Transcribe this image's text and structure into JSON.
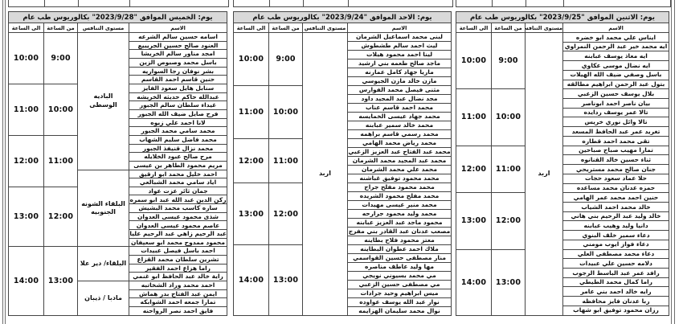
{
  "page": {
    "background": "#ffffff",
    "border_color": "#454545",
    "title_row_bg": "#d9d9d9"
  },
  "columns": {
    "name": "الاسم",
    "level": "مستوى التنافس",
    "from": "من الساعة",
    "to": "الى الساعة"
  },
  "tables": [
    {
      "title": "يوم: الخميس الموافق \"2023/9/28\" بكالوريوس طب عام",
      "blocks": [
        {
          "from": "9:00",
          "to": "10:00",
          "rows": 6
        },
        {
          "from": "10:00",
          "to": "11:00",
          "rows": 6
        },
        {
          "from": "11:00",
          "to": "12:00",
          "rows": 6
        },
        {
          "from": "12:00",
          "to": "13:00",
          "rows": 7
        },
        {
          "from": "13:00",
          "to": "14:00",
          "rows": 8
        }
      ],
      "levels": [
        {
          "label": "الباديه الوسطى",
          "rows": 16
        },
        {
          "label": "البلقاء الشونه الجنوبيه",
          "rows": 9
        },
        {
          "label": "البلقاء/ دير علا",
          "rows": 4
        },
        {
          "label": "مادبا / ذيبان",
          "rows": 4
        }
      ],
      "names": [
        "اسامه حسين سالم الشرعه",
        "العنود صالح حسين الجريبيع",
        "امجد مناور سالم الخريشا",
        "باسل محمد وصبوص الزين",
        "بشر نوفان رجا السواريه",
        "حنين قاسم احمد القاسم",
        "سنابل هايل سعود الفايز",
        "عبدالله حاكم حديثه الخريشه",
        "غيداء سلطان سالم الجبور",
        "فرح صايل ضيف الله الجبور",
        "لانا احمد علي زيوه",
        "محمد سامي محمد الجبور",
        "محمد فاضل سليم الشهاب",
        "محمد نزال قنيفذ الجبور",
        "مرح صالح عبود الخلايله",
        "مريم محمود الطاهر بن عيسى",
        "احمد خليل محمد ابو ارقيق",
        "اياد سامي محمد الشبالعي",
        "جمان ثائر عزت عواد",
        "ركن الدين عبد الله عبد ابو سمره",
        "ساره كاسب محمد البشيش",
        "شذى محمود عيسى العدوان",
        "عاصم محمود عيسى العدوان",
        "عبد الرحيم زاهي عبد الرحيم عليان",
        "محمود ممدوح محمد ابو سعيفان",
        "احمد باسل فيصل عبيدات",
        "تشرين سلطان محمد القزاع",
        "راما هزاع احمد الفقير",
        "راية خالد عبد الحافظ ابو غنمي",
        "احمد محمد وراد الشخاتبه",
        "ايمن عبد الفتاح بدر هماش",
        "تمارا جمعه احمد الشوابكه",
        "فايق احمد نصر الرواحنه"
      ]
    },
    {
      "title": "يوم: الاحد الموافق \"2023/9/24\" بكالوريوس طب عام",
      "blocks": [
        {
          "from": "9:00",
          "to": "10:00",
          "rows": 6
        },
        {
          "from": "10:00",
          "to": "11:00",
          "rows": 6
        },
        {
          "from": "11:00",
          "to": "12:00",
          "rows": 5
        },
        {
          "from": "12:00",
          "to": "13:00",
          "rows": 7
        },
        {
          "from": "13:00",
          "to": "14:00",
          "rows": 8
        }
      ],
      "levels": [
        {
          "label": "اربد",
          "rows": 32
        }
      ],
      "names": [
        "لبنى محمد اسماعيل الشرمان",
        "ليث احمد سالم طشطوش",
        "لينا احمد محمود هيلات",
        "ماجد صالح طعمه بني ارشيد",
        "ماريا جهاد كامل عمارنه",
        "مازن خالد مازن الجيوسي",
        "مثنى فيصل محمد الفوارس",
        "مجد نضال عبد المجيد داود",
        "محمد احمد قاسم عناب",
        "محمد جهاد عيسى الخمايسه",
        "محمد خالد سمير عبابنه",
        "محمد رسمي قاسم براهمه",
        "محمد رياض محمد الهامي",
        "محمد عبد الفتاح عبد العزيز الزعبي",
        "محمد عبد المجيد محمد الشرمان",
        "محمد علي محمد الشرمان",
        "محمد محمود توفيق غباشنه",
        "محمد محمود مفلح جراح",
        "محمد مفلح محمود الشريده",
        "محمد منير عيسى مهيدات",
        "محمد وليد محمود جرارحه",
        "محمود ماجد عبد العزيز عبابنه",
        "مصعب عدنان عبد القادر بني مفرج",
        "معتز محمود فلاح بطاينه",
        "ملاك احمد عطوان البطاينه",
        "منار مصطفى حسين القواسمي",
        "مها وليد عاطف مناصره",
        "مي محمد بسيوني نويجي",
        "مي مصطفى حسين الزعبي",
        "ميس ابراهيم وحيد جرادات",
        "نوار عبد الله يوسف عواوده",
        "نوال محمد سليمان الهزايمه"
      ]
    },
    {
      "title": "يوم: الاثنين الموافق \"2023/9/25\" بكالوريوس طب عام",
      "blocks": [
        {
          "from": "9:00",
          "to": "10:00",
          "rows": 6
        },
        {
          "from": "10:00",
          "to": "11:00",
          "rows": 6
        },
        {
          "from": "11:00",
          "to": "12:00",
          "rows": 5
        },
        {
          "from": "12:00",
          "to": "13:00",
          "rows": 6
        },
        {
          "from": "13:00",
          "to": "14:00",
          "rows": 7
        }
      ],
      "levels": [
        {
          "label": "اربد",
          "rows": 30
        }
      ],
      "names": [
        "ايناس علي محمد ابو خضره",
        "ايه محمد خير عبد الرحمن النمراوي",
        "ايه معاذ يوسف عبابنه",
        "ايه نضال موسى عكاوي",
        "باسل وصفي ضيف الله الهيلات",
        "بتول عبد الرحمن ابراهيم مطالقه",
        "بلال يوسف حسين الزعبي",
        "بيان ناصر احمد ابوناصر",
        "تالا عمر يوسف ردايده",
        "تالا وائل نوري خريس",
        "تغريد عمر عبد الحافظ المسعد",
        "تقى محمد احمد قطاره",
        "تمارا مهيب صباح صباحين",
        "ثناء حسين خالد القنانوه",
        "جنان صالح محمد مستريحي",
        "حلا عماد سعود حجات",
        "حمزه عدنان محمد مساعده",
        "حنين احمد محمد عمر الهامي",
        "خالد محمد احمد الشياب",
        "خالد وليد عبد الرحيم بني هاني",
        "دانيا وليد وهيب عبابنه",
        "دعاء سمير خلف البنوي",
        "دعاء فواز ايوب مومني",
        "دعاء محمد مصطفى العلي",
        "دلامه حسين علي عبيدات",
        "رافد عمر عبد الباسط الرجوب",
        "راما كمال محمد الطيطي",
        "رايه خالد احمد بني عامر",
        "ربا عدنان فايز محافظه",
        "رزان محمود توفيق ابو شهاب"
      ]
    }
  ]
}
